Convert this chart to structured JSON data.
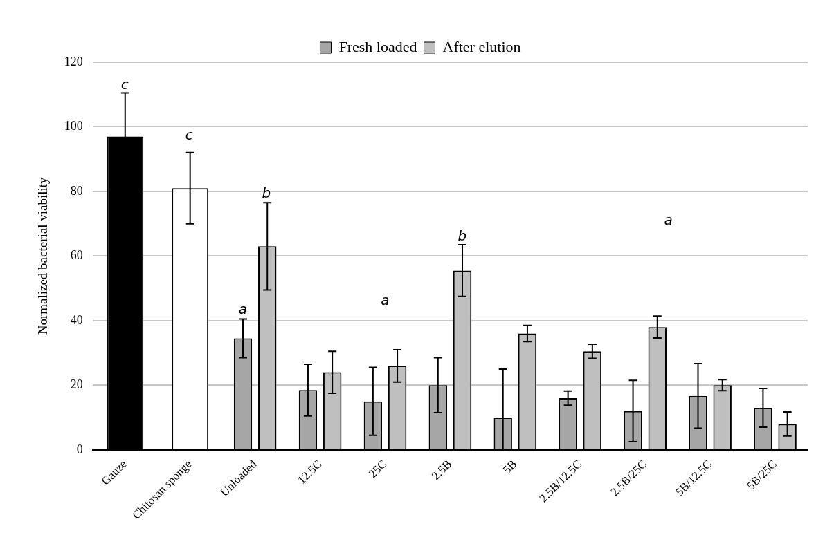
{
  "chart_data": {
    "type": "bar",
    "ylabel": "Normalized bacterial viability",
    "categories": [
      "Gauze",
      "Chitosan sponge",
      "Unloaded",
      "12.5C",
      "25C",
      "2.5B",
      "5B",
      "2.5B/12.5C",
      "2.5B/25C",
      "5B/12.5C",
      "5B/25C"
    ],
    "series": [
      {
        "color": "#000000",
        "values": [
          97,
          null,
          null,
          null,
          null,
          null,
          null,
          null,
          null,
          null,
          null
        ],
        "errors": [
          13.5,
          null,
          null,
          null,
          null,
          null,
          null,
          null,
          null,
          null,
          null
        ]
      },
      {
        "color": "#ffffff",
        "values": [
          null,
          81,
          null,
          null,
          null,
          null,
          null,
          null,
          null,
          null,
          null
        ],
        "errors": [
          null,
          11,
          null,
          null,
          null,
          null,
          null,
          null,
          null,
          null,
          null
        ]
      },
      {
        "name": "Fresh loaded",
        "color": "#a6a6a6",
        "values": [
          null,
          null,
          34.5,
          18.5,
          15,
          20,
          10,
          16,
          12,
          16.7,
          13
        ],
        "errors": [
          null,
          null,
          6,
          8,
          10.5,
          8.5,
          [
            0,
            25
          ],
          2.2,
          9.5,
          10,
          6
        ]
      },
      {
        "name": "After elution",
        "color": "#bfbfbf",
        "values": [
          null,
          null,
          63,
          24,
          26,
          55.5,
          36,
          30.5,
          38,
          20,
          8
        ],
        "errors": [
          null,
          null,
          13.5,
          6.5,
          5,
          8,
          2.5,
          2.2,
          3.4,
          1.7,
          3.7
        ]
      }
    ],
    "ylim": [
      0,
      120
    ],
    "yticks": [
      0,
      20,
      40,
      60,
      80,
      100,
      120
    ],
    "grid": "y",
    "legend": "top",
    "annotations": [
      "c",
      "c",
      "a",
      "b",
      "a",
      "b",
      "a"
    ]
  }
}
